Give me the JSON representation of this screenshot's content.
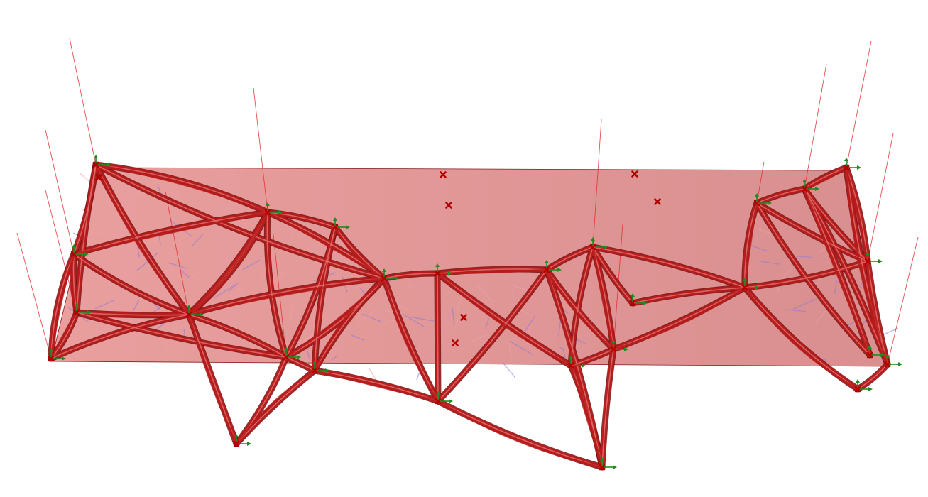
{
  "scene": {
    "description_type": "structural-optimization-render",
    "colors": {
      "background": "#ffffff",
      "plane_fill": "#d64545",
      "plane_opacity": 0.42,
      "member": "#b81c1c",
      "member_dark": "#7a0e0e",
      "member_light": "#e06a6a",
      "load_line": "#e03030",
      "support_marker": "#b30000",
      "arrow": "#1e8c1e",
      "guide_blue": "#8a7ad8",
      "guide_pink": "#f0a0a8"
    }
  }
}
